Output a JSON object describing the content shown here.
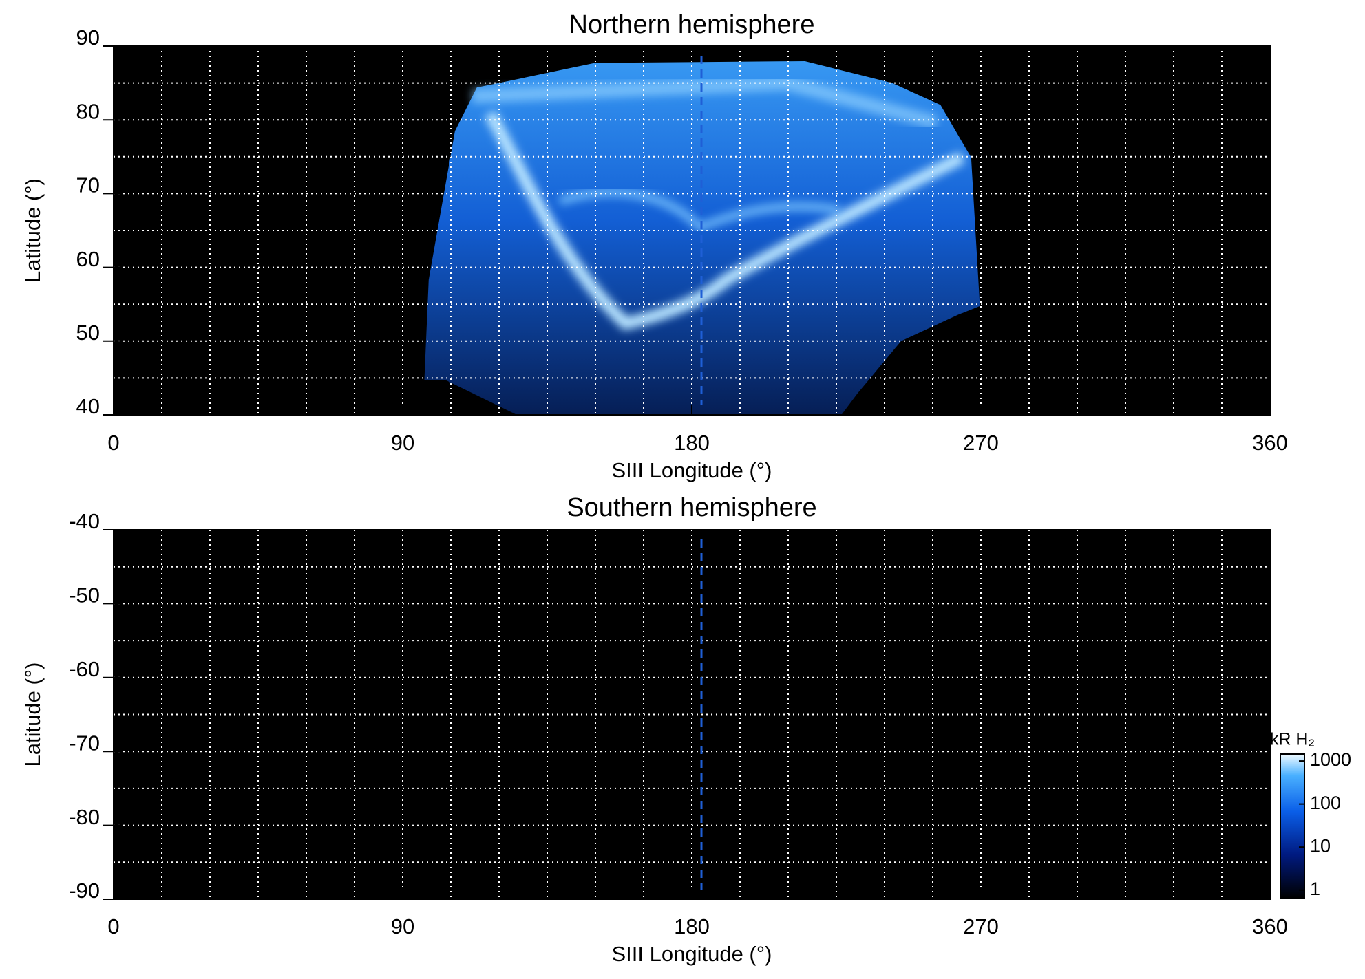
{
  "chart_data": [
    {
      "type": "heatmap",
      "title": "Northern hemisphere",
      "xlabel": "SIII Longitude (°)",
      "ylabel": "Latitude (°)",
      "xlim": [
        0,
        360
      ],
      "xticks": [
        0,
        90,
        180,
        270,
        360
      ],
      "ylim": [
        40,
        90
      ],
      "yticks": [
        40,
        50,
        60,
        70,
        80,
        90
      ],
      "xgrid": [
        15,
        30,
        45,
        60,
        75,
        90,
        105,
        120,
        135,
        150,
        165,
        180,
        195,
        210,
        225,
        240,
        255,
        270,
        285,
        300,
        315,
        330,
        345
      ],
      "ygrid": [
        45,
        50,
        55,
        60,
        65,
        70,
        75,
        80,
        85
      ],
      "vline": 183,
      "vline_color": "#1f5fd6"
    },
    {
      "type": "heatmap",
      "title": "Southern hemisphere",
      "xlabel": "SIII Longitude (°)",
      "ylabel": "Latitude (°)",
      "xlim": [
        0,
        360
      ],
      "xticks": [
        0,
        90,
        180,
        270,
        360
      ],
      "ylim": [
        -90,
        -40
      ],
      "yticks": [
        -90,
        -80,
        -70,
        -60,
        -50,
        -40
      ],
      "xgrid": [
        15,
        30,
        45,
        60,
        75,
        90,
        105,
        120,
        135,
        150,
        165,
        180,
        195,
        210,
        225,
        240,
        255,
        270,
        285,
        300,
        315,
        330,
        345
      ],
      "ygrid": [
        -85,
        -80,
        -75,
        -70,
        -65,
        -60,
        -55,
        -50,
        -45
      ],
      "vline": 183,
      "vline_color": "#1f5fd6",
      "colorbar": {
        "label": "kR H₂",
        "scale": "log",
        "lim": [
          0.66,
          1450
        ],
        "ticks": [
          1,
          10,
          100,
          1000
        ]
      }
    }
  ]
}
